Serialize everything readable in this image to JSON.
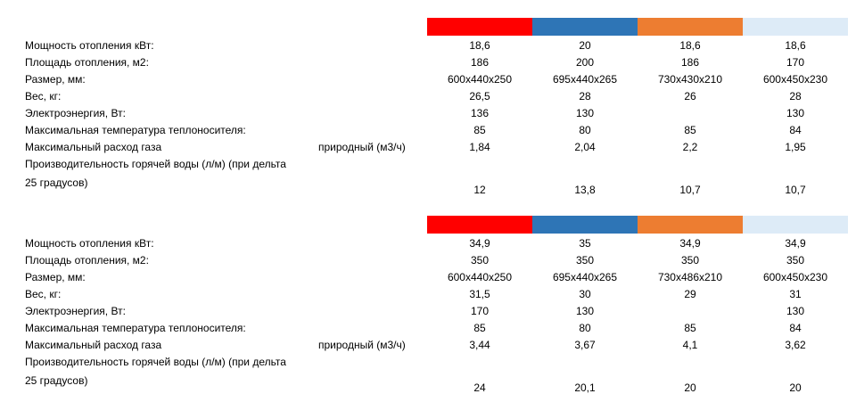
{
  "colors": {
    "swatches": [
      "#ff0000",
      "#2e75b6",
      "#ed7d31",
      "#ddebf7"
    ]
  },
  "tables": [
    {
      "rows": [
        {
          "label": "Мощность отопления кВт:",
          "sublabel": "",
          "values": [
            "18,6",
            "20",
            "18,6",
            "18,6"
          ]
        },
        {
          "label": "Площадь отопления, м2:",
          "sublabel": "",
          "values": [
            "186",
            "200",
            "186",
            "170"
          ]
        },
        {
          "label": "Размер, мм:",
          "sublabel": "",
          "values": [
            "600x440x250",
            "695x440x265",
            "730x430x210",
            "600x450x230"
          ]
        },
        {
          "label": "Вес, кг:",
          "sublabel": "",
          "values": [
            "26,5",
            "28",
            "26",
            "28"
          ]
        },
        {
          "label": "Электроэнергия, Вт:",
          "sublabel": "",
          "values": [
            "136",
            "130",
            "",
            "130"
          ]
        },
        {
          "label": "Максимальная температура теплоносителя:",
          "sublabel": "",
          "values": [
            "85",
            "80",
            "85",
            "84"
          ]
        },
        {
          "label": "Максимальный расход газа",
          "sublabel": "природный (м3/ч)",
          "values": [
            "1,84",
            "2,04",
            "2,2",
            "1,95"
          ]
        }
      ],
      "hot_water": {
        "label": "Производительность горячей воды (л/м) (при дельта 25 градусов)",
        "values": [
          "12",
          "13,8",
          "10,7",
          "10,7"
        ]
      }
    },
    {
      "rows": [
        {
          "label": "Мощность отопления кВт:",
          "sublabel": "",
          "values": [
            "34,9",
            "35",
            "34,9",
            "34,9"
          ]
        },
        {
          "label": "Площадь отопления, м2:",
          "sublabel": "",
          "values": [
            "350",
            "350",
            "350",
            "350"
          ]
        },
        {
          "label": "Размер, мм:",
          "sublabel": "",
          "values": [
            "600x440x250",
            "695x440x265",
            "730x486x210",
            "600x450x230"
          ]
        },
        {
          "label": "Вес, кг:",
          "sublabel": "",
          "values": [
            "31,5",
            "30",
            "29",
            "31"
          ]
        },
        {
          "label": "Электроэнергия, Вт:",
          "sublabel": "",
          "values": [
            "170",
            "130",
            "",
            "130"
          ]
        },
        {
          "label": "Максимальная температура теплоносителя:",
          "sublabel": "",
          "values": [
            "85",
            "80",
            "85",
            "84"
          ]
        },
        {
          "label": "Максимальный расход газа",
          "sublabel": "природный (м3/ч)",
          "values": [
            "3,44",
            "3,67",
            "4,1",
            "3,62"
          ]
        }
      ],
      "hot_water": {
        "label": "Производительность горячей воды (л/м) (при дельта 25 градусов)",
        "values": [
          "24",
          "20,1",
          "20",
          "20"
        ]
      }
    }
  ]
}
